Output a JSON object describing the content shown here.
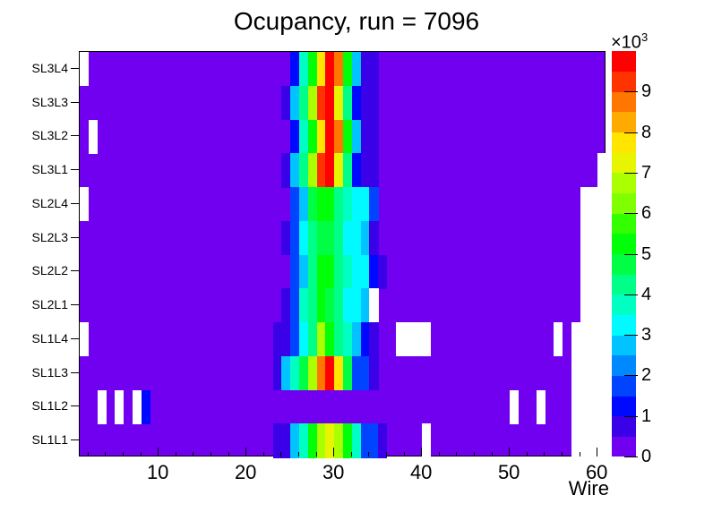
{
  "chart_data": {
    "type": "heatmap",
    "title": "Ocupancy, run = 7096",
    "xlabel": "Wire",
    "x_range": [
      1,
      61
    ],
    "n_wires": 60,
    "x_major_ticks": [
      10,
      20,
      30,
      40,
      50,
      60
    ],
    "x_minor_tick_step": 2,
    "z_range": [
      0,
      10000
    ],
    "z_scale_base": "×10",
    "z_scale_exp": "3",
    "colorbar_tick_labels": [
      "0",
      "1",
      "2",
      "3",
      "4",
      "5",
      "6",
      "7",
      "8",
      "9"
    ],
    "colorbar_tick_values": [
      0,
      1000,
      2000,
      3000,
      4000,
      5000,
      6000,
      7000,
      8000,
      9000
    ],
    "palette_band_size": 500,
    "palette": [
      "#7000EF",
      "#3A00E8",
      "#0009FF",
      "#0044FF",
      "#0088FF",
      "#00C3FF",
      "#00FAFF",
      "#00FFC3",
      "#00FF88",
      "#00FF44",
      "#00FF08",
      "#33FF00",
      "#7FFF00",
      "#AAFF00",
      "#E8F500",
      "#FFE500",
      "#FFAA00",
      "#FF7700",
      "#FF3300",
      "#FF0000"
    ],
    "empty_color": "#FFFFFF",
    "background_value": 250,
    "rows_top_to_bottom": [
      {
        "label": "SL3L4",
        "empty": [
          1
        ],
        "band": {
          "25": 1250,
          "26": 3750,
          "27": 5250,
          "28": 7750,
          "29": 9750,
          "30": 8750,
          "31": 5250,
          "32": 2750,
          "33": 750,
          "34": 750
        }
      },
      {
        "label": "SL3L3",
        "empty": [],
        "band": {
          "24": 750,
          "25": 2750,
          "26": 4250,
          "27": 6750,
          "28": 9250,
          "29": 9750,
          "30": 7250,
          "31": 4250,
          "32": 1250,
          "33": 750,
          "34": 750
        }
      },
      {
        "label": "SL3L2",
        "empty": [
          2
        ],
        "band": {
          "25": 1250,
          "26": 3750,
          "27": 5250,
          "28": 7750,
          "29": 9750,
          "30": 8750,
          "31": 5250,
          "32": 2750,
          "33": 750,
          "34": 750
        }
      },
      {
        "label": "SL3L1",
        "empty": [
          60
        ],
        "band": {
          "24": 750,
          "25": 2750,
          "26": 4250,
          "27": 6750,
          "28": 9250,
          "29": 9750,
          "30": 7250,
          "31": 4250,
          "32": 1250,
          "33": 750,
          "34": 750
        }
      },
      {
        "label": "SL2L4",
        "empty": [
          1,
          58,
          59,
          60
        ],
        "band": {
          "25": 1750,
          "26": 2750,
          "27": 4750,
          "28": 5250,
          "29": 5250,
          "30": 4250,
          "31": 3750,
          "32": 3250,
          "33": 3250,
          "34": 1750
        }
      },
      {
        "label": "SL2L3",
        "empty": [
          58,
          59,
          60
        ],
        "band": {
          "24": 750,
          "25": 1750,
          "26": 3250,
          "27": 4250,
          "28": 4750,
          "29": 4750,
          "30": 4250,
          "31": 3250,
          "32": 3250,
          "33": 2750,
          "34": 750
        }
      },
      {
        "label": "SL2L2",
        "empty": [
          58,
          59,
          60
        ],
        "band": {
          "25": 1750,
          "26": 2750,
          "27": 4250,
          "28": 5250,
          "29": 5250,
          "30": 4250,
          "31": 3750,
          "32": 3250,
          "33": 3250,
          "34": 1250,
          "35": 750
        }
      },
      {
        "label": "SL2L1",
        "empty": [
          34,
          58,
          59,
          60
        ],
        "band": {
          "24": 750,
          "25": 1750,
          "26": 3750,
          "27": 4250,
          "28": 5250,
          "29": 4750,
          "30": 4250,
          "31": 3250,
          "32": 3250,
          "33": 2750
        }
      },
      {
        "label": "SL1L4",
        "empty": [
          1,
          37,
          38,
          39,
          40,
          55,
          57,
          58,
          59,
          60
        ],
        "band": {
          "23": 750,
          "24": 750,
          "25": 1750,
          "26": 3250,
          "27": 4250,
          "28": 6750,
          "29": 5250,
          "30": 4250,
          "31": 3750,
          "32": 2750,
          "33": 1250,
          "34": 750
        }
      },
      {
        "label": "SL1L3",
        "empty": [
          57,
          58,
          59,
          60
        ],
        "band": {
          "23": 750,
          "24": 2750,
          "25": 3750,
          "26": 4750,
          "27": 6750,
          "28": 8750,
          "29": 9750,
          "30": 7750,
          "31": 4750,
          "32": 1750,
          "33": 1750,
          "34": 750
        }
      },
      {
        "label": "SL1L2",
        "empty": [
          3,
          5,
          7,
          50,
          53,
          57,
          58,
          59,
          60
        ],
        "band": {
          "8": 1250
        }
      },
      {
        "label": "SL1L1",
        "empty": [
          40,
          57,
          58,
          59,
          60
        ],
        "band": {
          "23": 750,
          "24": 750,
          "25": 2750,
          "26": 3750,
          "27": 5250,
          "28": 6750,
          "29": 7250,
          "30": 6750,
          "31": 5250,
          "32": 3750,
          "33": 1750,
          "34": 1750,
          "35": 750
        }
      }
    ]
  }
}
